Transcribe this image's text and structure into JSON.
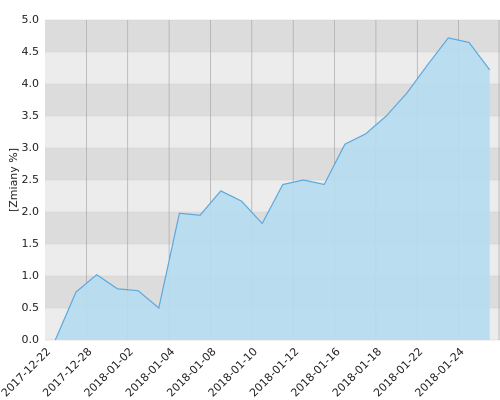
{
  "chart_data": {
    "type": "area",
    "y_label": "[Zmiany %]",
    "categories": [
      "2017-12-22",
      null,
      "2017-12-28",
      null,
      "2018-01-02",
      null,
      "2018-01-04",
      null,
      "2018-01-08",
      null,
      "2018-01-10",
      null,
      "2018-01-12",
      null,
      "2018-01-16",
      null,
      "2018-01-18",
      null,
      "2018-01-22",
      null,
      "2018-01-24",
      null
    ],
    "values": [
      0.0,
      0.75,
      1.02,
      0.8,
      0.77,
      0.5,
      1.98,
      1.95,
      2.33,
      2.17,
      1.82,
      2.43,
      2.5,
      2.43,
      3.06,
      3.22,
      3.5,
      3.86,
      4.3,
      4.72,
      4.65,
      4.22
    ],
    "color": "#b5ddf0",
    "line_color": "#5ba8de",
    "ylim": [
      0,
      5
    ],
    "yticks": [
      {
        "value": 0,
        "label": "0.0"
      },
      0.5,
      {
        "value": 1,
        "label": "1.0"
      },
      1.5,
      {
        "value": 2,
        "label": "2.0"
      },
      2.5,
      {
        "value": 3,
        "label": "3.0"
      },
      3.5,
      {
        "value": 4,
        "label": "4.0"
      },
      4.5,
      {
        "value": 5,
        "label": "5.0"
      }
    ],
    "grid": true
  }
}
